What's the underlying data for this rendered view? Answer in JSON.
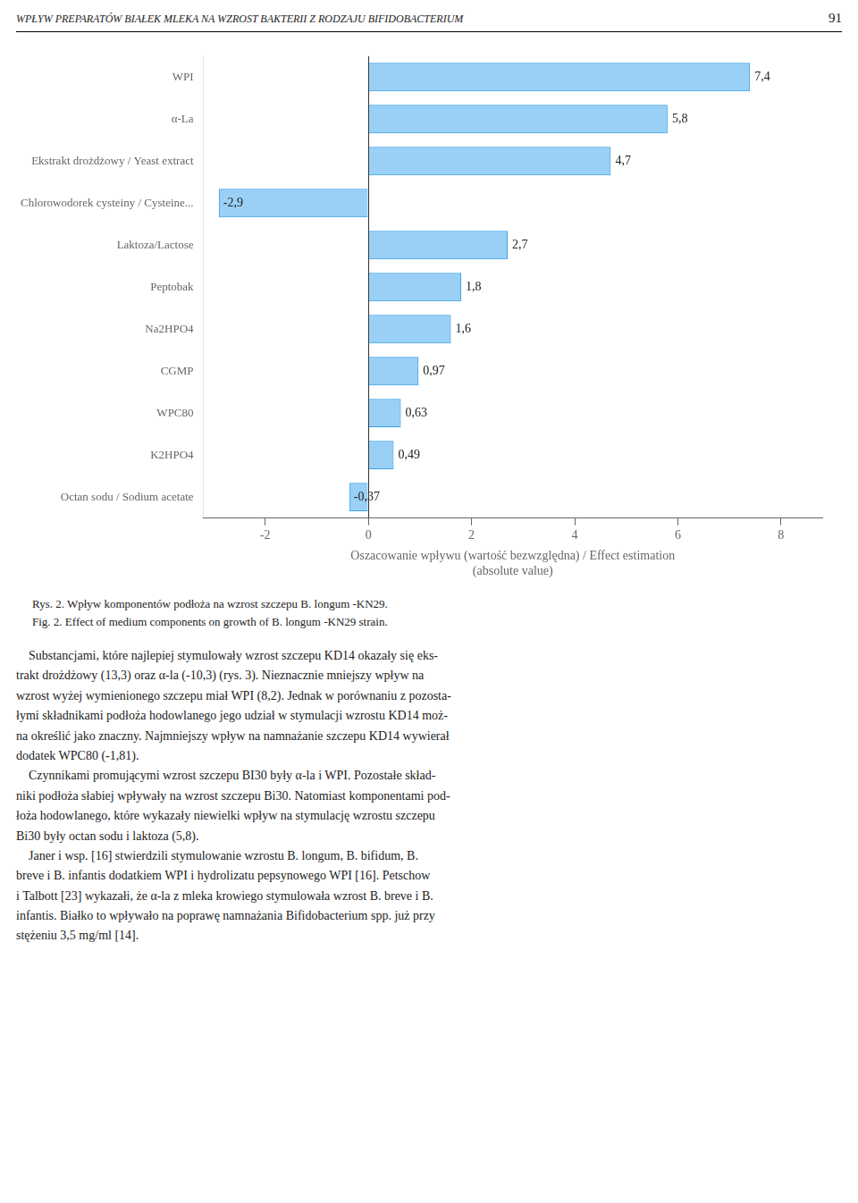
{
  "chart_data": {
    "type": "bar",
    "orientation": "horizontal",
    "title": "Rys. 2. Wpływ komponentów podłoża na wzrost szczepu B. longum -KN29.",
    "subtitle": "Fig. 2. Effect of medium components on growth of B. longum -KN29 strain.",
    "xlabel": [
      "Oszacowanie wpływu (wartość bezwzględna) / Effect estimation",
      "(absolute value)"
    ],
    "categories": [
      "WPI",
      "α-La",
      "Ekstrakt drożdżowy / Yeast extract",
      "Chlorowodorek cysteiny / Cysteine...",
      "Laktoza/Lactose",
      "Peptobak",
      "Na2HPO4",
      "CGMP",
      "WPC80",
      "K2HPO4",
      "Octan sodu / Sodium acetate"
    ],
    "values": [
      7.4,
      5.8,
      4.7,
      -2.9,
      2.7,
      1.8,
      1.6,
      0.97,
      0.63,
      0.49,
      -0.37
    ],
    "value_labels": [
      "7,4",
      "5,8",
      "4,7",
      "-2,9",
      "2,7",
      "1,8",
      "1,6",
      "0,97",
      "0,63",
      "0,49",
      "-0,37"
    ],
    "data_labels": true,
    "xlim": [
      -3.2,
      8.8
    ],
    "xticks": [
      -2,
      0,
      2,
      4,
      6,
      8
    ],
    "grid": false,
    "annotations": [
      "WPŁYW PREPARATÓW BIAŁEK MLEKA NA WZROST BAKTERII Z RODZAJU BIFIDOBACTERIUM",
      "91",
      "    Substancjami, które najlepiej stymulowały wzrost szczepu KD14 okazały się eks-",
      "trakt drożdżowy (13,3) oraz α-la (-10,3) (rys. 3). Nieznacznie mniejszy wpływ na",
      "wzrost wyżej wymienionego szczepu miał WPI (8,2). Jednak w porównaniu z pozosta-",
      "łymi składnikami podłoża hodowlanego jego udział w stymulacji wzrostu KD14 moż-",
      "na określić jako znaczny. Najmniejszy wpływ na namnażanie szczepu KD14 wywierał",
      "dodatek WPC80 (-1,81).",
      "    Czynnikami promującymi wzrost szczepu BI30 były α-la i WPI. Pozostałe skład-",
      "niki podłoża słabiej wpływały na wzrost szczepu Bi30. Natomiast komponentami pod-",
      "łoża hodowlanego, które wykazały niewielki wpływ na stymulację wzrostu szczepu",
      "Bi30 były octan sodu i laktoza (5,8).",
      "    Janer i wsp. [16] stwierdzili stymulowanie wzrostu B. longum, B. bifidum, B.",
      "breve i B. infantis dodatkiem WPI i hydrolizatu pepsynowego WPI [16]. Petschow",
      "i Talbott [23] wykazałi, że α-la z mleka krowiego stymulowała wzrost B. breve i B.",
      "infantis. Białko to wpływało na poprawę namnażania Bifidobacterium spp. już przy",
      "stężeniu 3,5 mg/ml [14]."
    ]
  }
}
